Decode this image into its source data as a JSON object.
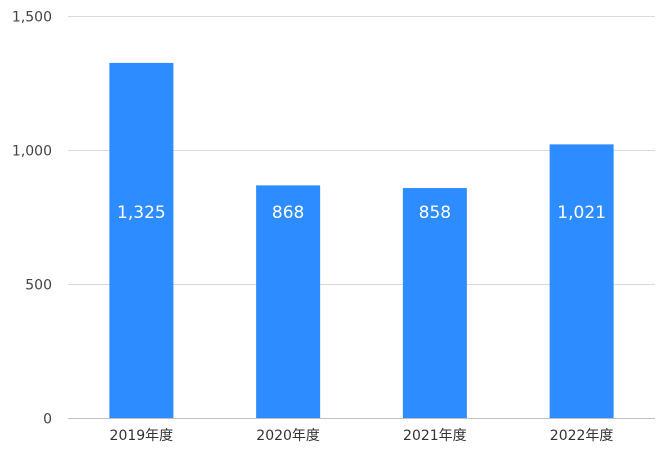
{
  "chart_data": {
    "type": "bar",
    "title": "",
    "xlabel": "",
    "ylabel": "",
    "categories": [
      "2019年度",
      "2020年度",
      "2021年度",
      "2022年度"
    ],
    "values": [
      1325,
      868,
      858,
      1021
    ],
    "value_labels": [
      "1,325",
      "868",
      "858",
      "1,021"
    ],
    "ylim": [
      0,
      1500
    ],
    "y_ticks": [
      0,
      500,
      1000,
      1500
    ],
    "y_tick_labels": [
      "0",
      "500",
      "1,000",
      "1,500"
    ],
    "grid": true,
    "legend": "none",
    "bar_color": "#2d8cff",
    "label_color": "#ffffff"
  }
}
